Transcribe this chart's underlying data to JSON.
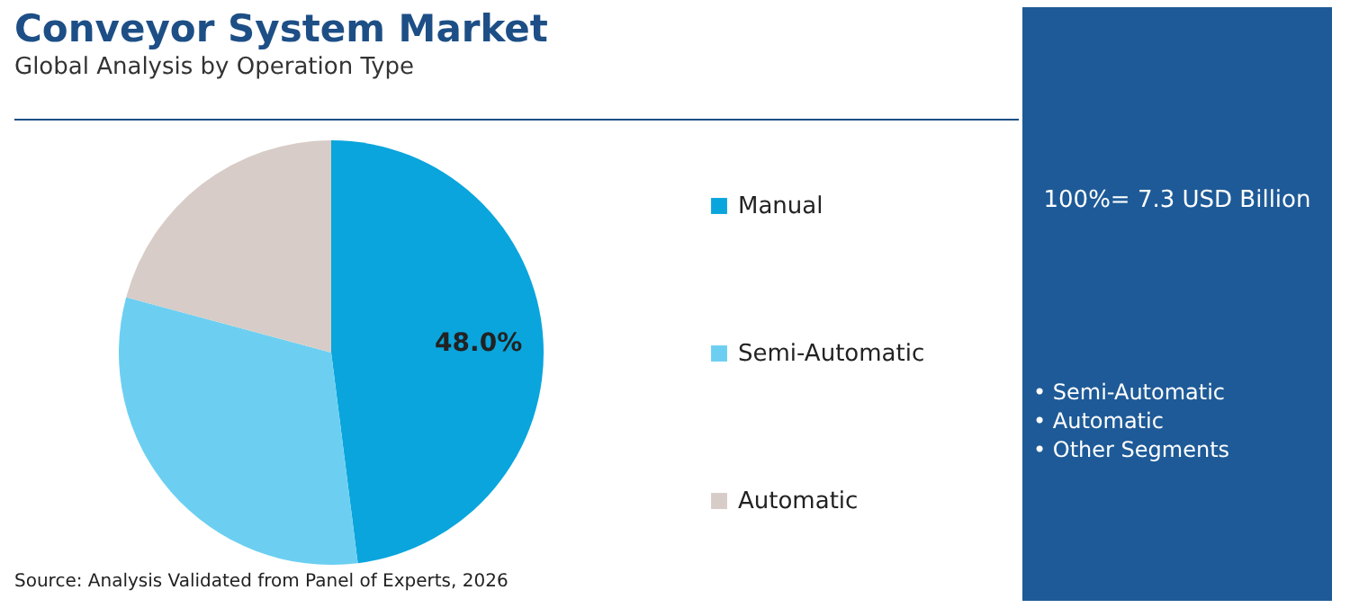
{
  "chart_data": {
    "type": "pie",
    "title": "Conveyor System Market",
    "subtitle": "Global Analysis by Operation Type",
    "categories": [
      "Manual",
      "Semi-Automatic",
      "Automatic"
    ],
    "values": [
      48.0,
      31.2,
      20.8
    ],
    "colors": [
      "#0aa5dc",
      "#6ccff2",
      "#d7ccc7"
    ],
    "value_labels": [
      "48.0%",
      null,
      null
    ],
    "legend": "right",
    "annotations": [
      "100%= 7.3 USD Billion",
      "• Semi-Automatic",
      "• Automatic",
      "• Other Segments",
      "Source: Analysis Validated from Panel of Experts, 2026"
    ]
  }
}
